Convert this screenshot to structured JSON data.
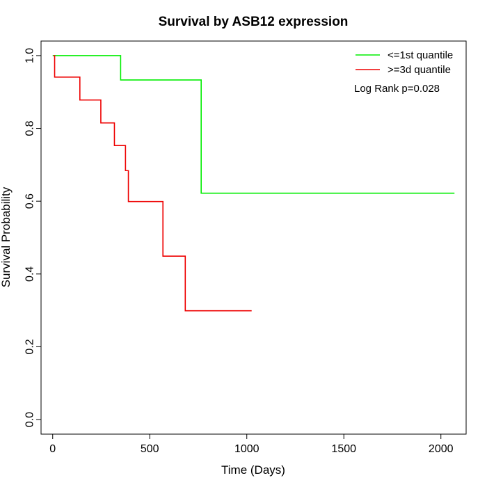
{
  "chart_data": {
    "type": "line",
    "title": "Survival by ASB12 expression",
    "xlabel": "Time (Days)",
    "ylabel": "Survival Probability",
    "xlim": [
      -60,
      2130
    ],
    "ylim": [
      -0.04,
      1.04
    ],
    "x_ticks": [
      0,
      500,
      1000,
      1500,
      2000
    ],
    "y_ticks": [
      0.0,
      0.2,
      0.4,
      0.6,
      0.8,
      1.0
    ],
    "x_tick_labels": [
      "0",
      "500",
      "1000",
      "1500",
      "2000"
    ],
    "y_tick_labels": [
      "0.0",
      "0.2",
      "0.4",
      "0.6",
      "0.8",
      "1.0"
    ],
    "grid": false,
    "legend_position": "top-right",
    "annotation": "Log Rank p=0.028",
    "series": [
      {
        "name": "<=1st quantile",
        "color": "#00ee00",
        "step_x": [
          0,
          350,
          350,
          765,
          765,
          2070
        ],
        "step_y": [
          1.0,
          1.0,
          0.933,
          0.933,
          0.622,
          0.622
        ]
      },
      {
        "name": ">=3d quantile",
        "color": "#ee0000",
        "step_x": [
          5,
          10,
          10,
          140,
          140,
          248,
          248,
          318,
          318,
          375,
          375,
          390,
          390,
          568,
          568,
          683,
          683,
          1025
        ],
        "step_y": [
          1.0,
          1.0,
          0.941,
          0.941,
          0.878,
          0.878,
          0.815,
          0.815,
          0.753,
          0.753,
          0.684,
          0.684,
          0.599,
          0.599,
          0.449,
          0.449,
          0.299,
          0.299
        ]
      }
    ]
  }
}
